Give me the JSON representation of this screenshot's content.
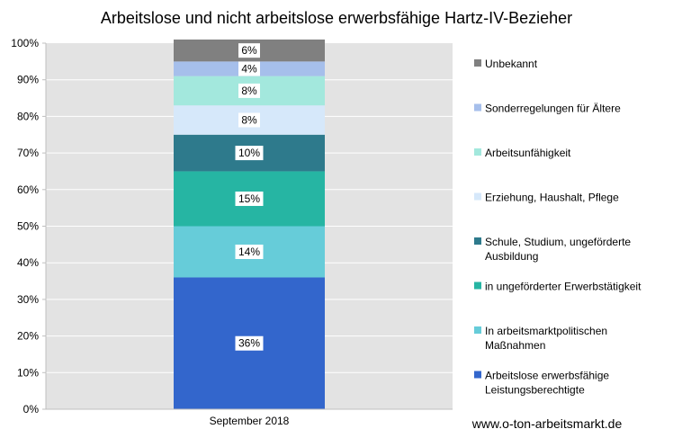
{
  "chart_data": {
    "type": "bar",
    "stacked": true,
    "title": "Arbeitslose und nicht arbeitslose erwerbsfähige Hartz-IV-Bezieher",
    "categories": [
      "September 2018"
    ],
    "ylim": [
      0,
      100
    ],
    "yticks": [
      "0%",
      "10%",
      "20%",
      "30%",
      "40%",
      "50%",
      "60%",
      "70%",
      "80%",
      "90%",
      "100%"
    ],
    "grid": true,
    "legend_position": "right",
    "series": [
      {
        "name": "Arbeitslose erwerbsfähige Leistungsberechtigte",
        "legend_lines": [
          "Arbeitslose erwerbsfähige",
          "Leistungsberechtigte"
        ],
        "values": [
          36
        ],
        "label": "36%",
        "color": "#3366CC"
      },
      {
        "name": "In arbeitsmarktpolitischen Maßnahmen",
        "legend_lines": [
          "In arbeitsmarktpolitischen",
          "Maßnahmen"
        ],
        "values": [
          14
        ],
        "label": "14%",
        "color": "#66CCD9"
      },
      {
        "name": "in ungeförderter Erwerbstätigkeit",
        "legend_lines": [
          "in ungeförderter Erwerbstätigkeit"
        ],
        "values": [
          15
        ],
        "label": "15%",
        "color": "#26B5A3"
      },
      {
        "name": "Schule, Studium, ungeförderte Ausbildung",
        "legend_lines": [
          "Schule, Studium, ungeförderte",
          "Ausbildung"
        ],
        "values": [
          10
        ],
        "label": "10%",
        "color": "#2E7A8C"
      },
      {
        "name": "Erziehung, Haushalt, Pflege",
        "legend_lines": [
          "Erziehung, Haushalt, Pflege"
        ],
        "values": [
          8
        ],
        "label": "8%",
        "color": "#D6E8FA"
      },
      {
        "name": "Arbeitsunfähigkeit",
        "legend_lines": [
          "Arbeitsunfähigkeit"
        ],
        "values": [
          8
        ],
        "label": "8%",
        "color": "#A3E8DD"
      },
      {
        "name": "Sonderregelungen für Ältere",
        "legend_lines": [
          "Sonderregelungen für Ältere"
        ],
        "values": [
          4
        ],
        "label": "4%",
        "color": "#A6BFEB"
      },
      {
        "name": "Unbekannt",
        "legend_lines": [
          "Unbekannt"
        ],
        "values": [
          6
        ],
        "label": "6%",
        "color": "#808080"
      }
    ]
  },
  "source": "www.o-ton-arbeitsmarkt.de",
  "colors": {
    "plot_background": "#E3E3E3",
    "gridline": "#FFFFFF",
    "axis": "#BFBFBF"
  }
}
